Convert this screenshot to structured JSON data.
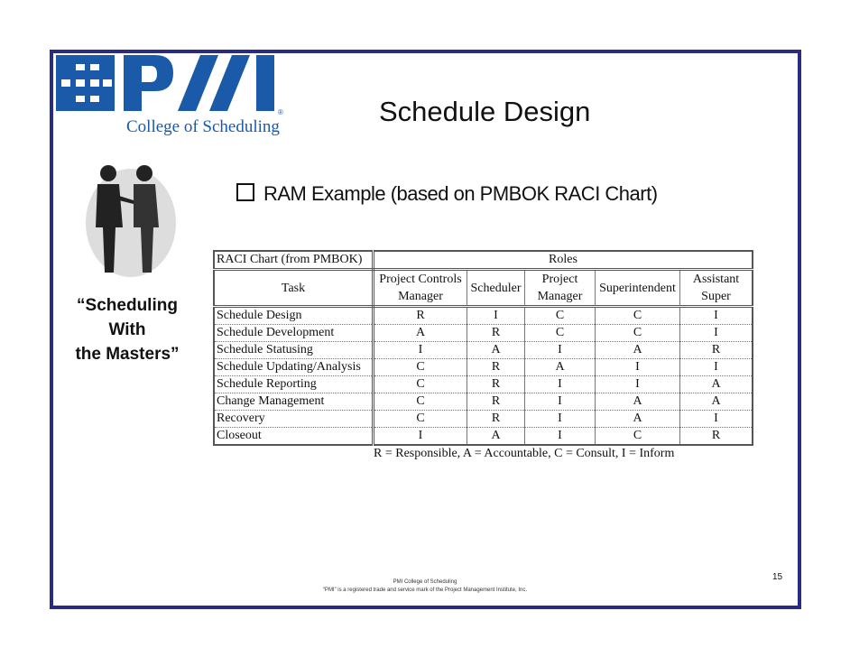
{
  "logo": {
    "text": "College of Scheduling",
    "brand": "PMI",
    "color": "#1a5aa8"
  },
  "title": "Schedule Design",
  "bullet": "RAM Example (based on PMBOK RACI Chart)",
  "side_text": [
    "“Scheduling",
    "With",
    "the Masters”"
  ],
  "table": {
    "corner": "RACI Chart (from PMBOK)",
    "roles_header": "Roles",
    "task_header": "Task",
    "roles": [
      [
        "Project Controls",
        "Manager"
      ],
      [
        "Scheduler",
        ""
      ],
      [
        "Project",
        "Manager"
      ],
      [
        "Superintendent",
        ""
      ],
      [
        "Assistant",
        "Super"
      ]
    ],
    "rows": [
      {
        "task": "Schedule Design",
        "values": [
          "R",
          "I",
          "C",
          "C",
          "I"
        ]
      },
      {
        "task": "Schedule Development",
        "values": [
          "A",
          "R",
          "C",
          "C",
          "I"
        ]
      },
      {
        "task": "Schedule Statusing",
        "values": [
          "I",
          "A",
          "I",
          "A",
          "R"
        ]
      },
      {
        "task": "Schedule Updating/Analysis",
        "values": [
          "C",
          "R",
          "A",
          "I",
          "I"
        ]
      },
      {
        "task": "Schedule Reporting",
        "values": [
          "C",
          "R",
          "I",
          "I",
          "A"
        ]
      },
      {
        "task": "Change Management",
        "values": [
          "C",
          "R",
          "I",
          "A",
          "A"
        ]
      },
      {
        "task": "Recovery",
        "values": [
          "C",
          "R",
          "I",
          "A",
          "I"
        ]
      },
      {
        "task": "Closeout",
        "values": [
          "I",
          "A",
          "I",
          "C",
          "R"
        ]
      }
    ],
    "legend": "R = Responsible, A = Accountable, C = Consult, I = Inform"
  },
  "footer": {
    "line1": "PMI  College of  Scheduling",
    "line2": "“PMI” is a registered trade and service mark of the Project Management Institute, Inc."
  },
  "page_number": "15",
  "frame_color": "#2b2b82"
}
